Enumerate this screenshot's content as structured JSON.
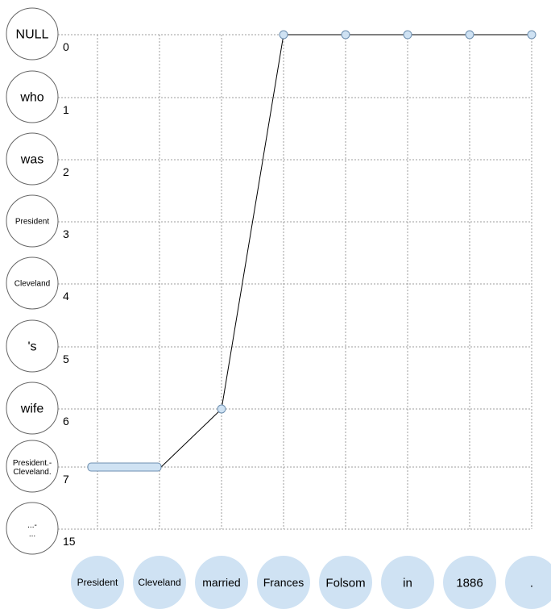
{
  "source_tokens": [
    "NULL",
    "who",
    "was",
    "President",
    "Cleveland",
    "'s",
    "wife",
    "President.-Cleveland.",
    "...-..."
  ],
  "source_indices": [
    "0",
    "1",
    "2",
    "3",
    "4",
    "5",
    "6",
    "7",
    "15"
  ],
  "target_tokens": [
    "President",
    "Cleveland",
    "married",
    "Frances",
    "Folsom",
    "in",
    "1886",
    "."
  ],
  "alignment": [
    {
      "target": 0,
      "source_row": 7,
      "span_to": 1
    },
    {
      "target": 2,
      "source_row": 6
    },
    {
      "target": 3,
      "source_row": 0
    },
    {
      "target": 4,
      "source_row": 0
    },
    {
      "target": 5,
      "source_row": 0
    },
    {
      "target": 6,
      "source_row": 0
    },
    {
      "target": 7,
      "source_row": 0
    }
  ],
  "colors": {
    "node_fill": "#cfe2f3",
    "node_stroke": "#6d8fb0",
    "grid": "#9e9e9e",
    "path": "#000000"
  }
}
